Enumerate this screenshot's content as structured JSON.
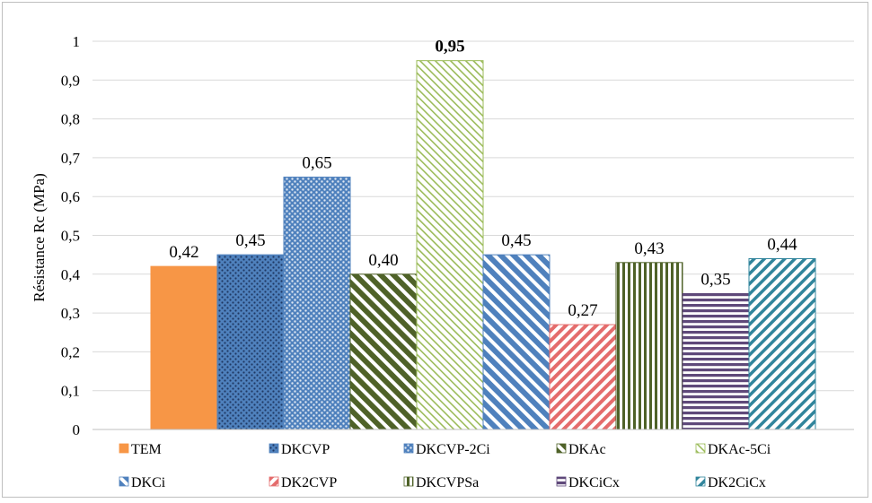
{
  "chart_data": {
    "type": "bar",
    "ylabel": "Résistance Rc (MPa)",
    "ylim": [
      0,
      1
    ],
    "yticks": [
      "0",
      "0,1",
      "0,2",
      "0,3",
      "0,4",
      "0,5",
      "0,6",
      "0,7",
      "0,8",
      "0,9",
      "1"
    ],
    "grid": true,
    "legend_position": "bottom",
    "series": [
      {
        "name": "TEM",
        "value": 0.42,
        "label": "0,42",
        "color": "#F79646",
        "pattern": "solid",
        "bold": false
      },
      {
        "name": "DKCVP",
        "value": 0.45,
        "label": "0,45",
        "color": "#4F81BD",
        "pattern": "dots-dense",
        "bold": false
      },
      {
        "name": "DKCVP-2Ci",
        "value": 0.65,
        "label": "0,65",
        "color": "#4F81BD",
        "pattern": "dots-light",
        "bold": false
      },
      {
        "name": "DKAc",
        "value": 0.4,
        "label": "0,40",
        "color": "#4F6228",
        "pattern": "diag-wide",
        "bold": false
      },
      {
        "name": "DKAc-5Ci",
        "value": 0.95,
        "label": "0,95",
        "color": "#9BBB59",
        "pattern": "diag-light",
        "bold": true
      },
      {
        "name": "DKCi",
        "value": 0.45,
        "label": "0,45",
        "color": "#4F81BD",
        "pattern": "diag-wide",
        "bold": false
      },
      {
        "name": "DK2CVP",
        "value": 0.27,
        "label": "0,27",
        "color": "#E46C6C",
        "pattern": "diag-down",
        "bold": false
      },
      {
        "name": "DKCVPSa",
        "value": 0.43,
        "label": "0,43",
        "color": "#4F6228",
        "pattern": "vertical",
        "bold": false
      },
      {
        "name": "DKCiCx",
        "value": 0.35,
        "label": "0,35",
        "color": "#5F497A",
        "pattern": "horizontal",
        "bold": false
      },
      {
        "name": "DK2CiCx",
        "value": 0.44,
        "label": "0,44",
        "color": "#31859C",
        "pattern": "diag-down-light",
        "bold": false
      }
    ]
  }
}
